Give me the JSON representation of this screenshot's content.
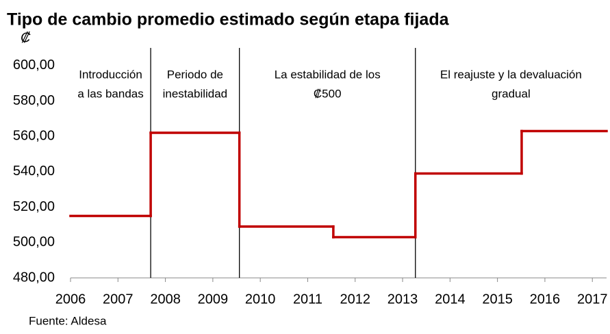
{
  "chart_data": {
    "type": "line",
    "step": "post",
    "title": "Tipo de cambio promedio estimado según etapa fijada",
    "y_label": "₡",
    "source": "Fuente: Aldesa",
    "x": [
      2006,
      2007.69,
      2009.56,
      2011.54,
      2013.27,
      2015.51,
      2017.3
    ],
    "values": [
      515,
      562,
      509,
      503,
      539,
      563,
      563
    ],
    "color": "#c00000",
    "xlim": [
      2006,
      2017.3
    ],
    "xticks": [
      2006,
      2007,
      2008,
      2009,
      2010,
      2011,
      2012,
      2013,
      2014,
      2015,
      2016,
      2017
    ],
    "ylim": [
      480,
      610
    ],
    "yticks": [
      {
        "value": 480,
        "label": "480,00"
      },
      {
        "value": 500,
        "label": "500,00"
      },
      {
        "value": 520,
        "label": "520,00"
      },
      {
        "value": 540,
        "label": "540,00"
      },
      {
        "value": 560,
        "label": "560,00"
      },
      {
        "value": 580,
        "label": "580,00"
      },
      {
        "value": 600,
        "label": "600,00"
      }
    ],
    "grid": false,
    "dividers": [
      2007.69,
      2009.56,
      2013.27
    ],
    "phases": [
      [
        "Introducción",
        "a las bandas"
      ],
      [
        "Periodo de",
        "inestabilidad"
      ],
      [
        "La estabilidad de los",
        "₡500"
      ],
      [
        "El reajuste y la devaluación",
        "gradual"
      ]
    ]
  }
}
